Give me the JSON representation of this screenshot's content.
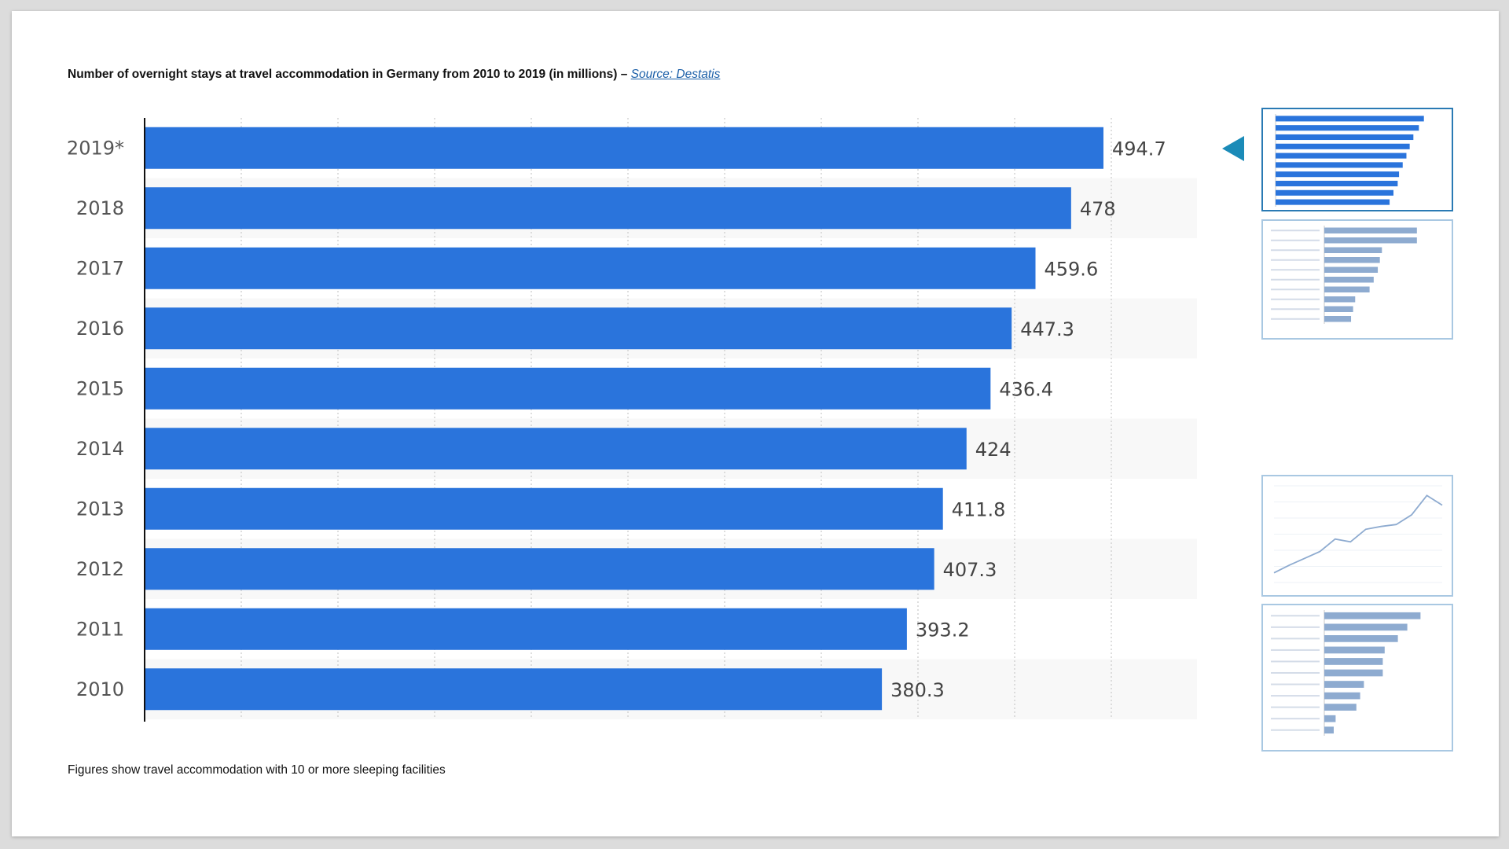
{
  "title": {
    "text": "Number of overnight stays at travel accommodation in Germany from 2010 to 2019 (in millions) –",
    "source_label": "Source: Destatis"
  },
  "footnote": "Figures show travel accommodation with 10 or more sleeping facilities",
  "colors": {
    "bar": "#2a74dc",
    "thumb_bar": "#8eabd0",
    "thumb_border": "#a9c8e2",
    "thumb_border_active": "#2a7ab4",
    "pointer": "#1b8bb8"
  },
  "chart_data": {
    "type": "bar",
    "orientation": "horizontal",
    "categories": [
      "2019*",
      "2018",
      "2017",
      "2016",
      "2015",
      "2014",
      "2013",
      "2012",
      "2011",
      "2010"
    ],
    "values": [
      494.7,
      478,
      459.6,
      447.3,
      436.4,
      424,
      411.8,
      407.3,
      393.2,
      380.3
    ],
    "data_labels": [
      "494.7",
      "478",
      "459.6",
      "447.3",
      "436.4",
      "424",
      "411.8",
      "407.3",
      "393.2",
      "380.3"
    ],
    "title": "Number of overnight stays at travel accommodation in Germany from 2010 to 2019 (in millions)",
    "xlabel": "",
    "ylabel": "",
    "xlim": [
      0,
      540
    ],
    "grid": true,
    "grid_style": "dotted-vertical",
    "alternating_row_bands": true
  },
  "thumbnails": [
    {
      "kind": "bar",
      "active": true,
      "values": [
        494.7,
        478,
        459.6,
        447.3,
        436.4,
        424,
        411.8,
        407.3,
        393.2,
        380.3
      ],
      "max": 540
    },
    {
      "kind": "bar",
      "active": false,
      "values": [
        45,
        45,
        28,
        27,
        26,
        24,
        22,
        15,
        14,
        13
      ],
      "max": 55
    },
    {
      "kind": "line",
      "active": false,
      "values": [
        10,
        18,
        25,
        32,
        45,
        42,
        55,
        58,
        60,
        70,
        90,
        80
      ],
      "max": 100
    },
    {
      "kind": "bar",
      "active": false,
      "values": [
        51,
        44,
        39,
        32,
        31,
        31,
        21,
        19,
        17,
        6,
        5
      ],
      "max": 60
    }
  ]
}
